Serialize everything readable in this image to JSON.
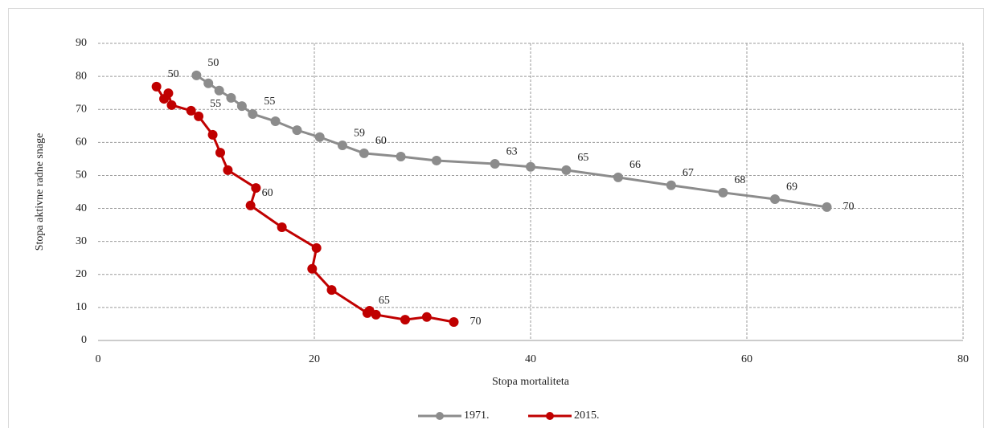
{
  "chart_data": {
    "type": "line",
    "x_label": "Stopa mortaliteta",
    "y_label": "Stopa aktivne radne snage",
    "xlim": [
      0,
      80
    ],
    "xticks": [
      0,
      20,
      40,
      60,
      80
    ],
    "ylim": [
      0,
      90
    ],
    "yticks": [
      0,
      10,
      20,
      30,
      40,
      50,
      60,
      70,
      80,
      90
    ],
    "grid": true,
    "legend": "bottom",
    "series": [
      {
        "name": "1971.",
        "color": "#8c8c8c",
        "x": [
          9.1,
          10.2,
          11.2,
          12.3,
          13.3,
          14.3,
          16.4,
          18.4,
          20.5,
          22.6,
          24.6,
          28.0,
          31.3,
          36.7,
          40.0,
          43.3,
          48.1,
          53.0,
          57.8,
          62.6,
          67.4
        ],
        "values": [
          80.3,
          77.9,
          75.7,
          73.5,
          71.0,
          68.6,
          66.4,
          63.7,
          61.6,
          59.1,
          56.7,
          55.7,
          54.5,
          53.5,
          52.6,
          51.6,
          49.4,
          47.0,
          44.8,
          42.8,
          40.4
        ],
        "point_labels": [
          50,
          null,
          null,
          null,
          null,
          55,
          null,
          null,
          null,
          59,
          60,
          null,
          null,
          63,
          null,
          65,
          66,
          67,
          68,
          69,
          70
        ]
      },
      {
        "name": "2015.",
        "color": "#c00000",
        "x": [
          5.4,
          6.1,
          6.5,
          6.8,
          8.6,
          9.3,
          10.6,
          11.3,
          12.0,
          14.6,
          14.1,
          17.0,
          20.2,
          19.8,
          21.6,
          24.9,
          25.1,
          25.7,
          28.4,
          30.4,
          32.9
        ],
        "values": [
          76.9,
          73.2,
          74.9,
          71.3,
          69.6,
          67.9,
          62.3,
          56.9,
          51.6,
          46.2,
          40.9,
          34.3,
          28.0,
          21.7,
          15.3,
          8.3,
          9.0,
          7.8,
          6.3,
          7.1,
          5.6
        ],
        "point_labels": [
          50,
          null,
          null,
          null,
          null,
          55,
          null,
          null,
          null,
          null,
          60,
          null,
          null,
          null,
          null,
          65,
          null,
          null,
          null,
          null,
          70
        ]
      }
    ]
  }
}
